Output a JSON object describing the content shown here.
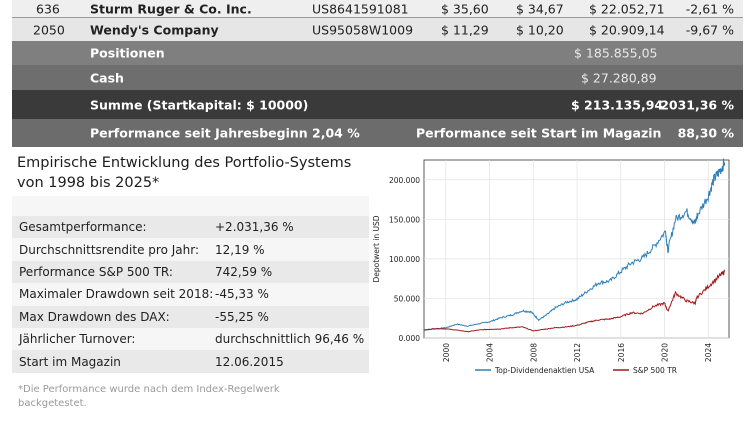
{
  "table": {
    "rows": [
      {
        "nr": "636",
        "name": "Sturm Ruger & Co. Inc.",
        "isin": "US8641591081",
        "buy": "$ 35,60",
        "price": "$ 34,67",
        "value": "$ 22.052,71",
        "perf": "-2,61 %"
      },
      {
        "nr": "2050",
        "name": "Wendy's Company",
        "isin": "US95058W1009",
        "buy": "$ 11,29",
        "price": "$ 10,20",
        "value": "$ 20.909,14",
        "perf": "-9,67 %"
      }
    ],
    "positions_label": "Positionen",
    "positions_value": "$ 185.855,05",
    "cash_label": "Cash",
    "cash_value": "$ 27.280,89",
    "sum_label": "Summe (Startkapital: $ 10000)",
    "sum_value": "$ 213.135,94",
    "sum_perf": "2031,36 %",
    "perf_ytd_label": "Performance seit Jahresbeginn",
    "perf_ytd_value": "2,04 %",
    "perf_start_label": "Performance seit Start im Magazin",
    "perf_start_value": "88,30 %"
  },
  "stats": {
    "title": "Empirische Entwicklung des Portfolio-Systems von 1998 bis 2025*",
    "items": [
      {
        "label": "Gesamtperformance:",
        "value": "+2.031,36 %"
      },
      {
        "label": "Durchschnittsrendite pro Jahr:",
        "value": "12,19 %"
      },
      {
        "label": "Performance S&P 500 TR:",
        "value": "742,59 %"
      },
      {
        "label": "Maximaler Drawdown seit 2018:",
        "value": "-45,33 %"
      },
      {
        "label": "Max Drawdown des DAX:",
        "value": "-55,25 %"
      },
      {
        "label": "Jährlicher Turnover:",
        "value": "durchschnittlich 96,46 %"
      },
      {
        "label": "Start im Magazin",
        "value": "12.06.2015"
      }
    ],
    "footnote": "*Die Performance wurde nach dem Index-Regelwerk backgetestet."
  },
  "chart_data": {
    "type": "line",
    "title": "",
    "xlabel": "",
    "ylabel": "Depotwert in USD",
    "xlim": [
      1998,
      2025.9
    ],
    "ylim": [
      0,
      225000
    ],
    "xticks": [
      "2000",
      "2004",
      "2008",
      "2012",
      "2016",
      "2020",
      "2024"
    ],
    "yticks": [
      "0.000",
      "50.000",
      "100.000",
      "150.000",
      "200.000"
    ],
    "grid": true,
    "legend_position": "bottom",
    "series": [
      {
        "name": "Top-Dividendenaktien USA",
        "color": "#2f7fb8",
        "x": [
          1998,
          1999,
          2000,
          2001,
          2002,
          2003,
          2004,
          2005,
          2006,
          2007,
          2007.8,
          2008.5,
          2009.2,
          2010,
          2011,
          2012,
          2013,
          2014,
          2015,
          2016,
          2017,
          2018,
          2019,
          2020.1,
          2020.3,
          2021,
          2022,
          2022.8,
          2023,
          2024,
          2024.5,
          2025,
          2025.5
        ],
        "y": [
          10000,
          11500,
          13000,
          17500,
          15000,
          18000,
          20500,
          25500,
          29000,
          34500,
          33000,
          23000,
          29000,
          38000,
          45000,
          49000,
          60000,
          70000,
          72000,
          84000,
          95000,
          101000,
          115000,
          135000,
          110000,
          150000,
          160000,
          145000,
          155000,
          180000,
          200000,
          210000,
          222000
        ]
      },
      {
        "name": "S&P 500 TR",
        "color": "#a3191c",
        "x": [
          1998,
          1999,
          2000,
          2001,
          2002,
          2003,
          2004,
          2005,
          2006,
          2007,
          2008,
          2009,
          2010,
          2011,
          2012,
          2013,
          2014,
          2015,
          2016,
          2017,
          2018,
          2019,
          2020,
          2020.3,
          2021,
          2022,
          2022.8,
          2023,
          2024,
          2025,
          2025.5
        ],
        "y": [
          10000,
          12000,
          11500,
          10000,
          8000,
          10000,
          11000,
          11500,
          13000,
          14000,
          9000,
          11000,
          13000,
          14000,
          16000,
          20000,
          23000,
          24000,
          27000,
          32000,
          31000,
          40000,
          44000,
          34000,
          57000,
          47000,
          44000,
          52000,
          65000,
          78000,
          84000
        ]
      }
    ]
  }
}
